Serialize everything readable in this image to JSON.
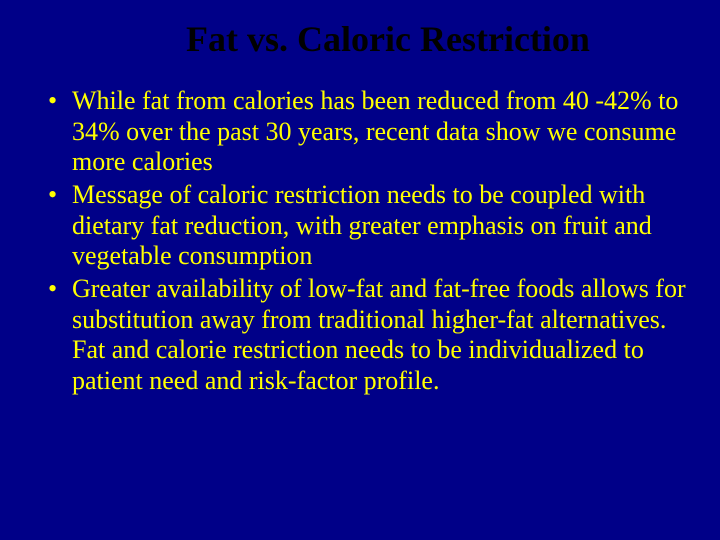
{
  "slide": {
    "background_color": "#000088",
    "title": {
      "text": "Fat vs. Caloric Restriction",
      "color": "#000000",
      "fontsize": 36,
      "font_weight": "bold",
      "font_family": "Times New Roman"
    },
    "bullets": {
      "color": "#ffff00",
      "fontsize": 26,
      "font_family": "Times New Roman",
      "items": [
        "While fat from calories has been reduced from 40 -42% to 34% over the past 30 years, recent data show we consume more calories",
        "Message of caloric restriction needs to be coupled with dietary fat reduction, with greater emphasis on fruit and vegetable consumption",
        "Greater availability of low-fat and fat-free foods allows for substitution away from traditional higher-fat alternatives.  Fat and calorie restriction needs to be individualized to patient need and risk-factor profile."
      ]
    }
  }
}
